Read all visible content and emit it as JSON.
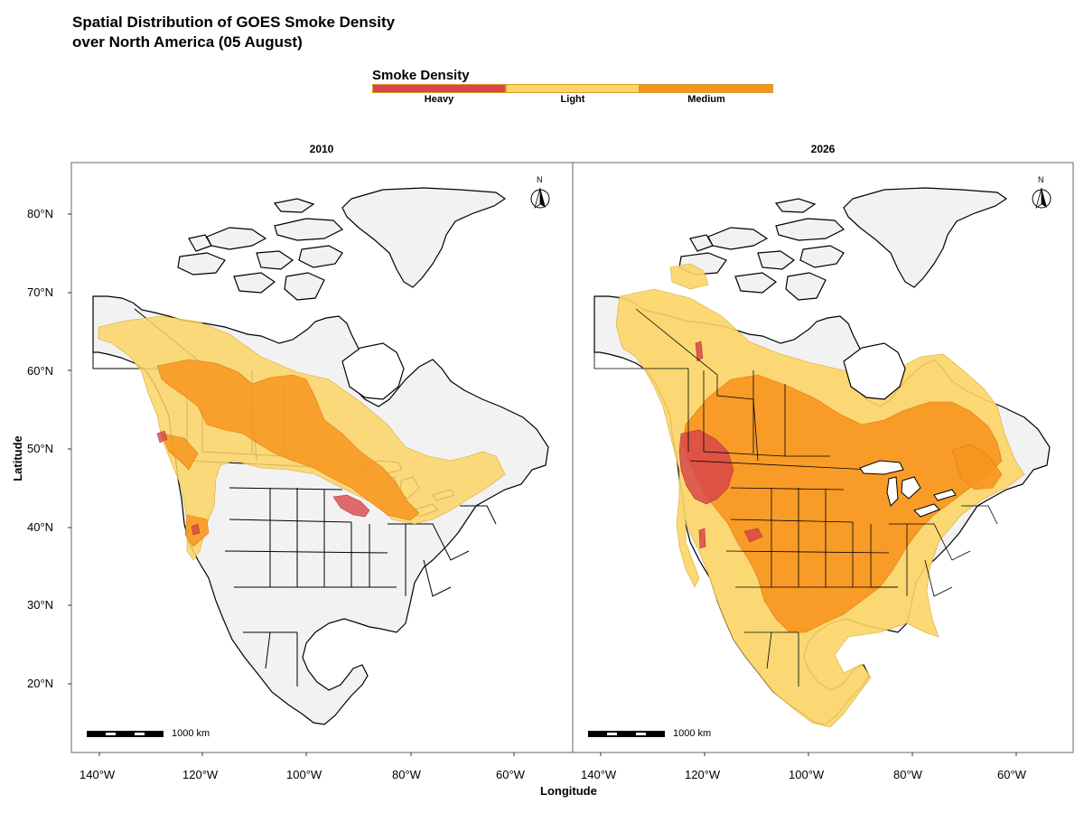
{
  "title_line1": "Spatial Distribution of GOES Smoke Density",
  "title_line2": "over North America (05 August)",
  "legend": {
    "title": "Smoke Density",
    "items": [
      {
        "label": "Heavy",
        "color": "#d9474a"
      },
      {
        "label": "Light",
        "color": "#fcd565"
      },
      {
        "label": "Medium",
        "color": "#f7951f"
      }
    ]
  },
  "panels": [
    {
      "title": "2010",
      "scale_label": "1000 km",
      "north": "N"
    },
    {
      "title": "2026",
      "scale_label": "1000 km",
      "north": "N"
    }
  ],
  "x_axis": {
    "title": "Longitude",
    "ticks": [
      "140°W",
      "120°W",
      "100°W",
      "80°W",
      "60°W"
    ]
  },
  "y_axis": {
    "title": "Latitude",
    "ticks": [
      "80°N",
      "70°N",
      "60°N",
      "50°N",
      "40°N",
      "30°N",
      "20°N"
    ]
  },
  "colors": {
    "land": "#f2f2f2",
    "border": "#000000",
    "panel_border": "#666666"
  }
}
